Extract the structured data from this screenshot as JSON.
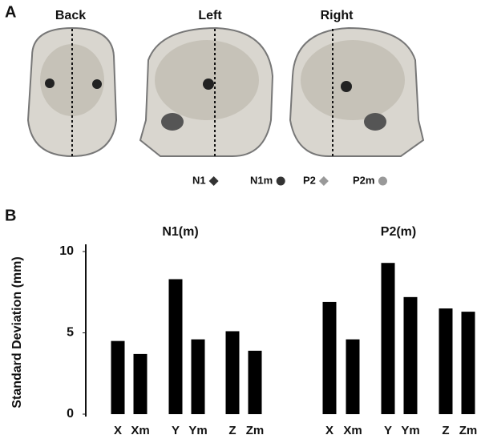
{
  "panel_labels": [
    "A",
    "B"
  ],
  "views": [
    "Back",
    "Left",
    "Right"
  ],
  "legend": [
    {
      "name": "N1",
      "color": "#333333",
      "marker": "diamond"
    },
    {
      "name": "N1m",
      "color": "#333333",
      "marker": "circle"
    },
    {
      "name": "P2",
      "color": "#999999",
      "marker": "diamond"
    },
    {
      "name": "P2m",
      "color": "#999999",
      "marker": "circle"
    }
  ],
  "chart_data": {
    "type": "bar",
    "ylabel": "Standard Deviation (mm)",
    "ylim": [
      0,
      10
    ],
    "yticks": [
      0,
      5,
      10
    ],
    "color": "#000000",
    "groups": [
      {
        "title": "N1(m)",
        "categories": [
          "X",
          "Xm",
          "Y",
          "Ym",
          "Z",
          "Zm"
        ],
        "values": [
          4.5,
          3.7,
          8.3,
          4.6,
          5.1,
          3.9
        ]
      },
      {
        "title": "P2(m)",
        "categories": [
          "X",
          "Xm",
          "Y",
          "Ym",
          "Z",
          "Zm"
        ],
        "values": [
          6.9,
          4.6,
          9.3,
          7.2,
          6.5,
          6.3
        ]
      }
    ]
  }
}
